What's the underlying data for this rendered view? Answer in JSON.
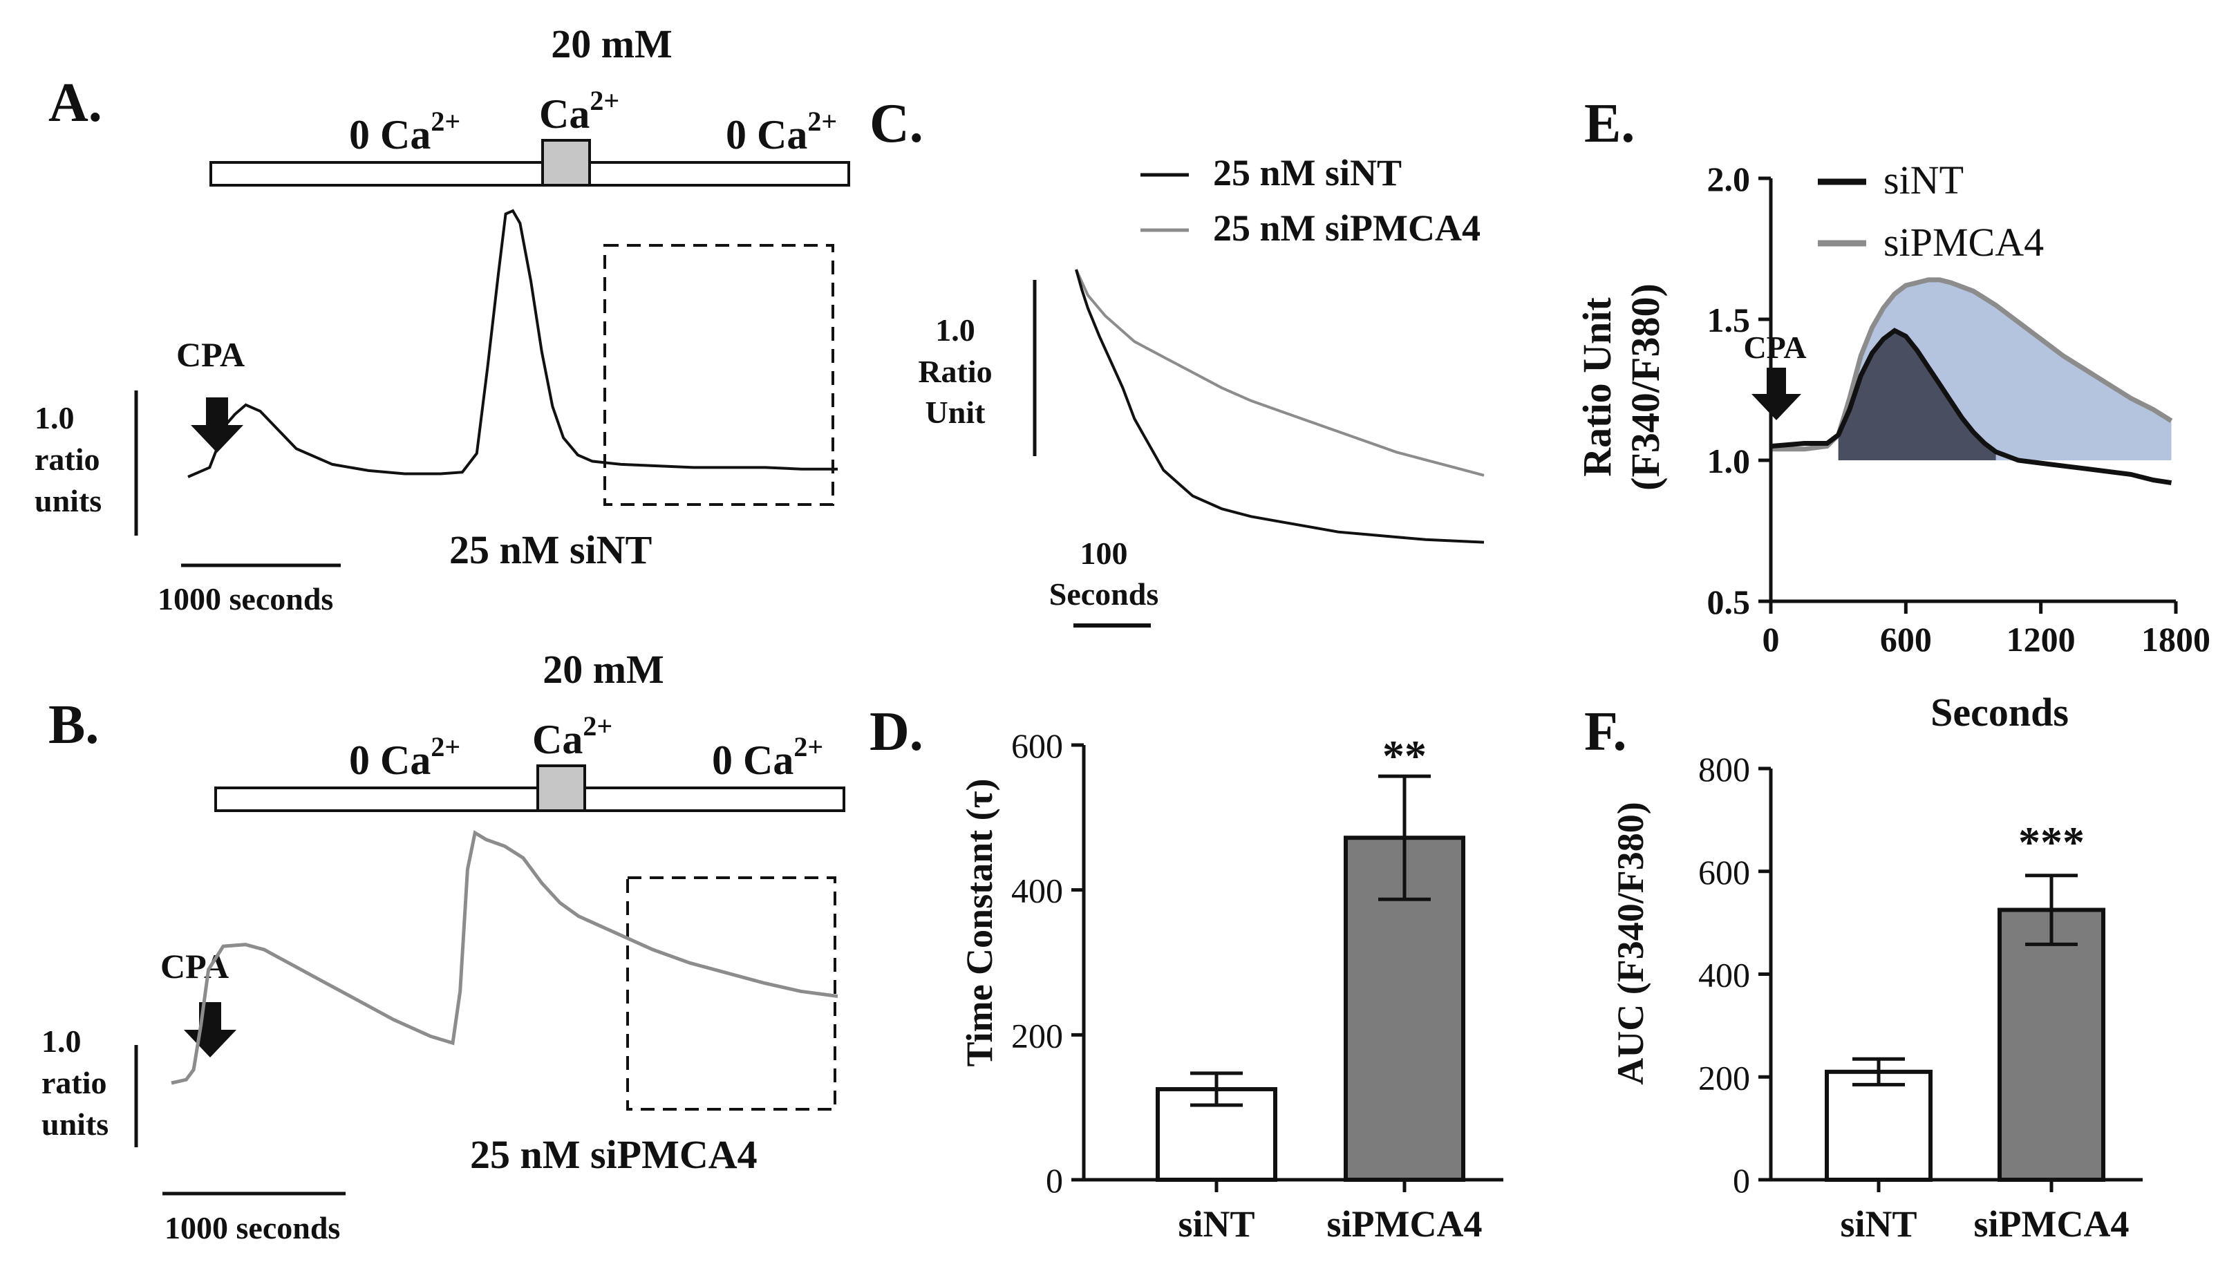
{
  "colors": {
    "black": "#111111",
    "gray": "#8c8c8c",
    "blue_fill": "#a7b8d8",
    "dark_fill": "#3d4353",
    "bar_white": "#ffffff",
    "bar_gray": "#7c7c7c",
    "bath_gray": "#c6c6c6"
  },
  "panels": {
    "A": {
      "letter": "A.",
      "bath_top": "20 mM",
      "bath_ca": "Ca",
      "bath_sup": "2+",
      "bath_zero": "0 Ca",
      "cpa": "CPA",
      "scale_y": [
        "1.0",
        "ratio",
        "units"
      ],
      "scale_x": "1000 seconds",
      "caption": "25 nM siNT"
    },
    "B": {
      "letter": "B.",
      "bath_top": "20 mM",
      "bath_ca": "Ca",
      "bath_sup": "2+",
      "bath_zero": "0 Ca",
      "cpa": "CPA",
      "scale_y": [
        "1.0",
        "ratio",
        "units"
      ],
      "scale_x": "1000 seconds",
      "caption": "25 nM siPMCA4"
    },
    "C": {
      "letter": "C.",
      "legend": [
        "25 nM siNT",
        "25 nM siPMCA4"
      ],
      "scale_y": [
        "1.0",
        "Ratio",
        "Unit"
      ],
      "scale_x": [
        "100",
        "Seconds"
      ]
    },
    "D": {
      "letter": "D.",
      "sig": "**"
    },
    "E": {
      "letter": "E.",
      "cpa": "CPA"
    },
    "F": {
      "letter": "F.",
      "sig": "***"
    }
  },
  "chart_data": [
    {
      "panel": "D",
      "type": "bar",
      "categories": [
        "siNT",
        "siPMCA4"
      ],
      "values": [
        125,
        472
      ],
      "errors": [
        22,
        85
      ],
      "ylabel": "Time Constant (τ)",
      "ylim": [
        0,
        600
      ],
      "yticks": [
        "0",
        "200",
        "400",
        "600"
      ]
    },
    {
      "panel": "F",
      "type": "bar",
      "categories": [
        "siNT",
        "siPMCA4"
      ],
      "values": [
        210,
        525
      ],
      "errors": [
        25,
        67
      ],
      "ylabel": "AUC (F340/F380)",
      "ylim": [
        0,
        800
      ],
      "yticks": [
        "0",
        "200",
        "400",
        "600",
        "800"
      ]
    },
    {
      "panel": "E",
      "type": "area",
      "xlabel": "Seconds",
      "ylabel": [
        "Ratio Unit",
        "(F340/F380)"
      ],
      "xlim": [
        0,
        1800
      ],
      "ylim": [
        0.5,
        2.0
      ],
      "xticks": [
        "0",
        "600",
        "1200",
        "1800"
      ],
      "yticks": [
        "0.5",
        "1.0",
        "1.5",
        "2.0"
      ],
      "series": [
        {
          "name": "siNT",
          "x": [
            0,
            150,
            250,
            300,
            350,
            400,
            450,
            500,
            550,
            600,
            650,
            700,
            750,
            800,
            850,
            900,
            950,
            1000,
            1100,
            1200,
            1300,
            1400,
            1500,
            1600,
            1700,
            1780
          ],
          "y": [
            1.05,
            1.06,
            1.06,
            1.09,
            1.18,
            1.3,
            1.38,
            1.43,
            1.46,
            1.44,
            1.39,
            1.33,
            1.27,
            1.21,
            1.15,
            1.1,
            1.06,
            1.03,
            1.0,
            0.99,
            0.98,
            0.97,
            0.96,
            0.95,
            0.93,
            0.92
          ]
        },
        {
          "name": "siPMCA4",
          "x": [
            0,
            150,
            250,
            300,
            350,
            400,
            450,
            500,
            550,
            600,
            650,
            700,
            750,
            800,
            900,
            1000,
            1100,
            1200,
            1300,
            1400,
            1500,
            1600,
            1700,
            1780
          ],
          "y": [
            1.04,
            1.04,
            1.05,
            1.09,
            1.22,
            1.37,
            1.47,
            1.54,
            1.59,
            1.62,
            1.63,
            1.64,
            1.64,
            1.63,
            1.6,
            1.55,
            1.49,
            1.43,
            1.37,
            1.32,
            1.27,
            1.22,
            1.18,
            1.14
          ]
        }
      ]
    },
    {
      "panel": "A",
      "type": "line",
      "series": [
        {
          "x": [
            0,
            40,
            60,
            80,
            100,
            130,
            160,
            200,
            250,
            300,
            400,
            500,
            600,
            700,
            760,
            800,
            830,
            860,
            880,
            900,
            920,
            950,
            980,
            1010,
            1040,
            1080,
            1120,
            1200,
            1300,
            1400,
            1500,
            1600,
            1700,
            1800
          ],
          "y": [
            0.0,
            0.04,
            0.06,
            0.18,
            0.32,
            0.4,
            0.46,
            0.42,
            0.3,
            0.18,
            0.08,
            0.04,
            0.02,
            0.02,
            0.03,
            0.15,
            0.7,
            1.3,
            1.68,
            1.7,
            1.62,
            1.25,
            0.8,
            0.45,
            0.25,
            0.14,
            0.1,
            0.08,
            0.07,
            0.06,
            0.06,
            0.06,
            0.05,
            0.05
          ]
        }
      ]
    },
    {
      "panel": "B",
      "type": "line",
      "series": [
        {
          "x": [
            0,
            40,
            60,
            80,
            100,
            140,
            200,
            250,
            300,
            400,
            500,
            600,
            700,
            760,
            780,
            800,
            820,
            850,
            900,
            950,
            1000,
            1050,
            1100,
            1200,
            1300,
            1400,
            1500,
            1600,
            1700,
            1800
          ],
          "y": [
            0.0,
            0.02,
            0.08,
            0.35,
            0.68,
            0.82,
            0.83,
            0.8,
            0.74,
            0.62,
            0.5,
            0.38,
            0.28,
            0.24,
            0.55,
            1.28,
            1.5,
            1.46,
            1.42,
            1.35,
            1.2,
            1.08,
            1.0,
            0.9,
            0.8,
            0.72,
            0.66,
            0.6,
            0.55,
            0.52
          ]
        }
      ]
    },
    {
      "panel": "C",
      "type": "line",
      "series": [
        {
          "name": "25 nM siNT",
          "x": [
            0,
            10,
            20,
            40,
            60,
            80,
            100,
            120,
            150,
            180,
            200,
            250,
            300,
            350,
            400,
            450,
            500,
            550,
            600,
            700
          ],
          "y": [
            1.08,
            1.0,
            0.93,
            0.82,
            0.72,
            0.62,
            0.5,
            0.42,
            0.3,
            0.24,
            0.2,
            0.15,
            0.12,
            0.1,
            0.08,
            0.06,
            0.05,
            0.04,
            0.03,
            0.02
          ]
        },
        {
          "name": "25 nM siPMCA4",
          "x": [
            0,
            20,
            50,
            100,
            150,
            200,
            250,
            300,
            350,
            400,
            450,
            500,
            550,
            600,
            650,
            700
          ],
          "y": [
            1.08,
            0.98,
            0.9,
            0.8,
            0.74,
            0.68,
            0.62,
            0.57,
            0.53,
            0.49,
            0.45,
            0.41,
            0.37,
            0.34,
            0.31,
            0.28
          ]
        }
      ]
    }
  ]
}
